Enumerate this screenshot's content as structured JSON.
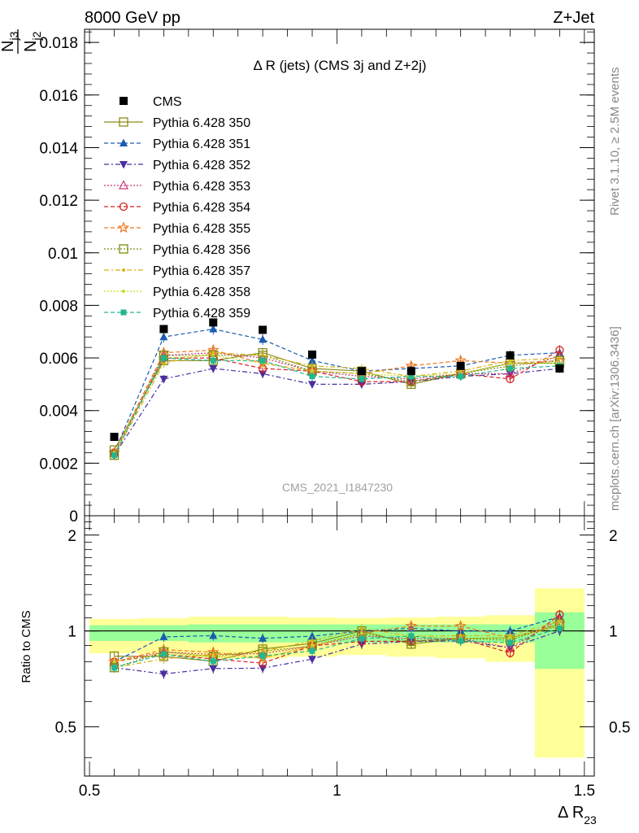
{
  "header": {
    "left": "8000 GeV pp",
    "right": "Z+Jet"
  },
  "side_labels": {
    "rivet": "Rivet 3.1.10, ≥ 2.5M events",
    "mcplots": "mcplots.cern.ch [arXiv:1306.3436]"
  },
  "watermark": "CMS_2021_I1847230",
  "chart_data": {
    "type": "line",
    "title": "Δ R (jets) (CMS 3j and Z+2j)",
    "xlabel": "Δ R",
    "xlabel_sub": "23",
    "ylabel": "N",
    "ylabel_sub": "j3",
    "ylabel_denom": "N",
    "ylabel_denom_sub": "j2",
    "ratio_ylabel": "Ratio to CMS",
    "xlim": [
      0.49,
      1.52
    ],
    "ylim": [
      0,
      0.0185
    ],
    "ratio_ylim": [
      0.35,
      2.3
    ],
    "x_ticks": [
      "0.5",
      "1",
      "1.5"
    ],
    "y_ticks": [
      "0",
      "0.002",
      "0.004",
      "0.006",
      "0.008",
      "0.01",
      "0.012",
      "0.014",
      "0.016",
      "0.018"
    ],
    "ratio_ticks": [
      "0.5",
      "1",
      "2"
    ],
    "x": [
      0.55,
      0.65,
      0.75,
      0.85,
      0.95,
      1.05,
      1.15,
      1.25,
      1.35,
      1.45
    ],
    "bin_edges": [
      0.5,
      0.6,
      0.7,
      0.8,
      0.9,
      1.0,
      1.1,
      1.2,
      1.3,
      1.4,
      1.5
    ],
    "data": {
      "name": "CMS",
      "values": [
        0.003,
        0.0071,
        0.00735,
        0.00707,
        0.00613,
        0.0055,
        0.0055,
        0.0057,
        0.0061,
        0.0056
      ],
      "band_inner": [
        0.07,
        0.07,
        0.08,
        0.08,
        0.08,
        0.08,
        0.08,
        0.08,
        0.08,
        0.24
      ],
      "band_outer": [
        0.15,
        0.16,
        0.18,
        0.18,
        0.17,
        0.16,
        0.17,
        0.18,
        0.2,
        0.6
      ]
    },
    "series": [
      {
        "name": "Pythia 6.428 350",
        "color": "#8c8c1a",
        "marker": "square-open",
        "dash": "solid",
        "values": [
          0.0025,
          0.0059,
          0.0059,
          0.0062,
          0.0056,
          0.0055,
          0.005,
          0.0054,
          0.0058,
          0.0058
        ]
      },
      {
        "name": "Pythia 6.428 351",
        "color": "#1a5cb0",
        "marker": "triangle-up",
        "dash": "5,3",
        "values": [
          0.0024,
          0.0068,
          0.0071,
          0.0067,
          0.0059,
          0.0055,
          0.0056,
          0.0057,
          0.0061,
          0.0062
        ]
      },
      {
        "name": "Pythia 6.428 352",
        "color": "#4b2da0",
        "marker": "triangle-down",
        "dash": "6,3,2,3",
        "values": [
          0.0023,
          0.0052,
          0.0056,
          0.0054,
          0.005,
          0.005,
          0.0051,
          0.0053,
          0.0054,
          0.0056
        ]
      },
      {
        "name": "Pythia 6.428 353",
        "color": "#c8387a",
        "marker": "triangle-open",
        "dash": "2,2",
        "values": [
          0.0024,
          0.0061,
          0.0062,
          0.006,
          0.0055,
          0.0053,
          0.0052,
          0.0054,
          0.0054,
          0.0061
        ]
      },
      {
        "name": "Pythia 6.428 354",
        "color": "#d42020",
        "marker": "circle-open",
        "dash": "5,3",
        "values": [
          0.0024,
          0.006,
          0.006,
          0.0056,
          0.0055,
          0.0051,
          0.0051,
          0.0054,
          0.0052,
          0.0063
        ]
      },
      {
        "name": "Pythia 6.428 355",
        "color": "#f07820",
        "marker": "star-open",
        "dash": "5,3",
        "values": [
          0.0024,
          0.0062,
          0.0063,
          0.0058,
          0.0055,
          0.0054,
          0.0057,
          0.0059,
          0.0058,
          0.0059
        ]
      },
      {
        "name": "Pythia 6.428 356",
        "color": "#7a8c10",
        "marker": "square-open",
        "dash": "2,2",
        "values": [
          0.0023,
          0.0061,
          0.0061,
          0.0061,
          0.0055,
          0.0054,
          0.0051,
          0.0054,
          0.0057,
          0.0059
        ]
      },
      {
        "name": "Pythia 6.428 357",
        "color": "#d8b010",
        "marker": "dot",
        "dash": "6,3,2,3",
        "values": [
          0.0023,
          0.0058,
          0.0062,
          0.0061,
          0.0057,
          0.0056,
          0.0053,
          0.0055,
          0.0059,
          0.006
        ]
      },
      {
        "name": "Pythia 6.428 358",
        "color": "#c8dc28",
        "marker": "dot",
        "dash": "2,2",
        "values": [
          0.0024,
          0.006,
          0.0061,
          0.0058,
          0.0055,
          0.0054,
          0.0053,
          0.0054,
          0.0058,
          0.0058
        ]
      },
      {
        "name": "Pythia 6.428 359",
        "color": "#20b890",
        "marker": "square-filled",
        "dash": "5,3",
        "values": [
          0.0023,
          0.006,
          0.0059,
          0.0059,
          0.0053,
          0.0052,
          0.0053,
          0.0053,
          0.0056,
          0.0057
        ]
      }
    ]
  }
}
